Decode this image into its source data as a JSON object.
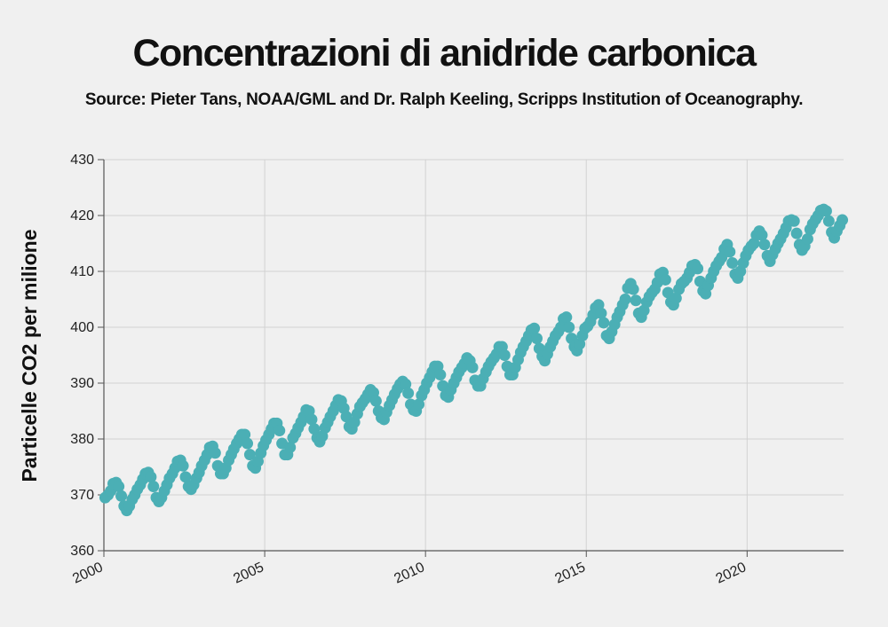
{
  "title": "Concentrazioni di anidride carbonica",
  "subtitle": "Source: Pieter Tans, NOAA/GML and Dr. Ralph Keeling, Scripps Institution of Oceanography.",
  "colors": {
    "series": "#4bafb5",
    "grid": "#d2d2d2",
    "axis": "#555555",
    "background": "#f0f0f0"
  },
  "chart_data": {
    "type": "scatter",
    "title": "Concentrazioni di anidride carbonica",
    "xlabel": "",
    "ylabel": "Particelle CO2 per milione",
    "xlim": [
      2000,
      2023
    ],
    "ylim": [
      360,
      430
    ],
    "xticks": [
      2000,
      2005,
      2010,
      2015,
      2020
    ],
    "xtick_labels": [
      "2000",
      "2005",
      "2010",
      "2015",
      "2020"
    ],
    "yticks": [
      360,
      370,
      380,
      390,
      400,
      410,
      420,
      430
    ],
    "ytick_labels": [
      "360",
      "370",
      "380",
      "390",
      "400",
      "410",
      "420",
      "430"
    ],
    "grid": true,
    "legend": false,
    "series": [
      {
        "x": [
          2000.04,
          2000.13,
          2000.21,
          2000.29,
          2000.38,
          2000.46,
          2000.54,
          2000.63,
          2000.71,
          2000.79,
          2000.88,
          2000.96,
          2001.04,
          2001.13,
          2001.21,
          2001.29,
          2001.38,
          2001.46,
          2001.54,
          2001.63,
          2001.71,
          2001.79,
          2001.88,
          2001.96,
          2002.04,
          2002.13,
          2002.21,
          2002.29,
          2002.38,
          2002.46,
          2002.54,
          2002.63,
          2002.71,
          2002.79,
          2002.88,
          2002.96,
          2003.04,
          2003.13,
          2003.21,
          2003.29,
          2003.38,
          2003.46,
          2003.54,
          2003.63,
          2003.71,
          2003.79,
          2003.88,
          2003.96,
          2004.04,
          2004.13,
          2004.21,
          2004.29,
          2004.38,
          2004.46,
          2004.54,
          2004.63,
          2004.71,
          2004.79,
          2004.88,
          2004.96,
          2005.04,
          2005.13,
          2005.21,
          2005.29,
          2005.38,
          2005.46,
          2005.54,
          2005.63,
          2005.71,
          2005.79,
          2005.88,
          2005.96,
          2006.04,
          2006.13,
          2006.21,
          2006.29,
          2006.38,
          2006.46,
          2006.54,
          2006.63,
          2006.71,
          2006.79,
          2006.88,
          2006.96,
          2007.04,
          2007.13,
          2007.21,
          2007.29,
          2007.38,
          2007.46,
          2007.54,
          2007.63,
          2007.71,
          2007.79,
          2007.88,
          2007.96,
          2008.04,
          2008.13,
          2008.21,
          2008.29,
          2008.38,
          2008.46,
          2008.54,
          2008.63,
          2008.71,
          2008.79,
          2008.88,
          2008.96,
          2009.04,
          2009.13,
          2009.21,
          2009.29,
          2009.38,
          2009.46,
          2009.54,
          2009.63,
          2009.71,
          2009.79,
          2009.88,
          2009.96,
          2010.04,
          2010.13,
          2010.21,
          2010.29,
          2010.38,
          2010.46,
          2010.54,
          2010.63,
          2010.71,
          2010.79,
          2010.88,
          2010.96,
          2011.04,
          2011.13,
          2011.21,
          2011.29,
          2011.38,
          2011.46,
          2011.54,
          2011.63,
          2011.71,
          2011.79,
          2011.88,
          2011.96,
          2012.04,
          2012.13,
          2012.21,
          2012.29,
          2012.38,
          2012.46,
          2012.54,
          2012.63,
          2012.71,
          2012.79,
          2012.88,
          2012.96,
          2013.04,
          2013.13,
          2013.21,
          2013.29,
          2013.38,
          2013.46,
          2013.54,
          2013.63,
          2013.71,
          2013.79,
          2013.88,
          2013.96,
          2014.04,
          2014.13,
          2014.21,
          2014.29,
          2014.38,
          2014.46,
          2014.54,
          2014.63,
          2014.71,
          2014.79,
          2014.88,
          2014.96,
          2015.04,
          2015.13,
          2015.21,
          2015.29,
          2015.38,
          2015.46,
          2015.54,
          2015.63,
          2015.71,
          2015.79,
          2015.88,
          2015.96,
          2016.04,
          2016.13,
          2016.21,
          2016.29,
          2016.38,
          2016.46,
          2016.54,
          2016.63,
          2016.71,
          2016.79,
          2016.88,
          2016.96,
          2017.04,
          2017.13,
          2017.21,
          2017.29,
          2017.38,
          2017.46,
          2017.54,
          2017.63,
          2017.71,
          2017.79,
          2017.88,
          2017.96,
          2018.04,
          2018.13,
          2018.21,
          2018.29,
          2018.38,
          2018.46,
          2018.54,
          2018.63,
          2018.71,
          2018.79,
          2018.88,
          2018.96,
          2019.04,
          2019.13,
          2019.21,
          2019.29,
          2019.38,
          2019.46,
          2019.54,
          2019.63,
          2019.71,
          2019.79,
          2019.88,
          2019.96,
          2020.04,
          2020.13,
          2020.21,
          2020.29,
          2020.38,
          2020.46,
          2020.54,
          2020.63,
          2020.71,
          2020.79,
          2020.88,
          2020.96,
          2021.04,
          2021.13,
          2021.21,
          2021.29,
          2021.38,
          2021.46,
          2021.54,
          2021.63,
          2021.71,
          2021.79,
          2021.88,
          2021.96,
          2022.04,
          2022.13,
          2022.21,
          2022.29,
          2022.38,
          2022.46,
          2022.54,
          2022.63,
          2022.71,
          2022.79,
          2022.88,
          2022.96
        ],
        "y": [
          369.5,
          370.0,
          370.7,
          372.0,
          372.2,
          371.5,
          369.8,
          368.0,
          367.2,
          368.0,
          369.2,
          370.0,
          371.0,
          371.8,
          372.8,
          373.8,
          374.0,
          373.2,
          371.5,
          369.5,
          368.8,
          369.5,
          370.7,
          371.8,
          373.0,
          373.8,
          374.8,
          376.0,
          376.2,
          375.2,
          373.2,
          371.5,
          371.0,
          371.8,
          373.0,
          374.0,
          375.2,
          376.2,
          377.2,
          378.5,
          378.7,
          377.5,
          375.2,
          373.8,
          373.8,
          374.8,
          376.2,
          377.2,
          378.2,
          379.2,
          380.0,
          380.8,
          380.8,
          379.2,
          377.2,
          375.2,
          374.8,
          376.0,
          377.5,
          378.8,
          379.8,
          380.8,
          381.8,
          382.8,
          382.8,
          381.5,
          379.2,
          377.2,
          377.2,
          378.5,
          380.2,
          381.0,
          382.0,
          383.0,
          384.0,
          385.2,
          385.0,
          383.5,
          381.8,
          380.2,
          379.5,
          380.5,
          382.0,
          383.0,
          384.0,
          385.0,
          386.0,
          387.0,
          386.8,
          385.5,
          384.0,
          382.2,
          381.8,
          383.0,
          384.5,
          385.8,
          386.5,
          387.2,
          388.0,
          388.8,
          388.3,
          386.8,
          385.0,
          383.8,
          383.5,
          384.8,
          386.0,
          387.0,
          388.0,
          389.0,
          389.8,
          390.3,
          389.8,
          388.2,
          386.2,
          385.2,
          385.0,
          386.2,
          387.8,
          388.8,
          390.0,
          391.0,
          392.0,
          393.0,
          393.0,
          391.5,
          389.5,
          387.8,
          387.5,
          388.8,
          390.0,
          391.0,
          392.0,
          392.8,
          393.5,
          394.5,
          394.0,
          392.8,
          390.5,
          389.5,
          389.5,
          390.8,
          392.0,
          393.0,
          393.8,
          394.5,
          395.2,
          396.5,
          396.5,
          395.0,
          393.0,
          391.5,
          391.5,
          392.8,
          394.2,
          395.5,
          396.5,
          397.5,
          398.5,
          399.5,
          399.8,
          398.0,
          396.2,
          394.8,
          394.0,
          395.2,
          396.5,
          397.5,
          398.5,
          399.2,
          400.0,
          401.5,
          401.8,
          400.0,
          398.0,
          396.5,
          395.8,
          397.0,
          398.5,
          399.8,
          400.2,
          401.0,
          402.2,
          403.5,
          404.0,
          402.5,
          400.8,
          398.5,
          398.0,
          399.2,
          400.5,
          401.8,
          402.8,
          404.0,
          405.0,
          407.0,
          407.8,
          406.8,
          404.8,
          402.5,
          401.8,
          403.0,
          404.5,
          405.5,
          406.2,
          406.8,
          408.0,
          409.5,
          409.8,
          408.5,
          406.2,
          404.5,
          404.0,
          405.2,
          406.8,
          407.8,
          408.2,
          408.8,
          409.8,
          411.0,
          411.2,
          410.5,
          408.2,
          406.5,
          406.0,
          407.5,
          408.8,
          410.0,
          411.0,
          411.8,
          412.5,
          414.0,
          414.8,
          413.5,
          411.5,
          409.5,
          408.8,
          410.0,
          411.5,
          412.8,
          413.8,
          414.5,
          415.0,
          416.5,
          417.2,
          416.5,
          414.8,
          412.8,
          411.8,
          413.0,
          414.0,
          415.0,
          415.8,
          416.8,
          417.8,
          419.0,
          419.2,
          419.0,
          416.8,
          414.8,
          413.8,
          414.5,
          415.8,
          417.5,
          418.5,
          419.3,
          420.0,
          420.9,
          421.1,
          420.8,
          419.0,
          417.0,
          416.0,
          417.2,
          418.2,
          419.2
        ]
      }
    ]
  }
}
